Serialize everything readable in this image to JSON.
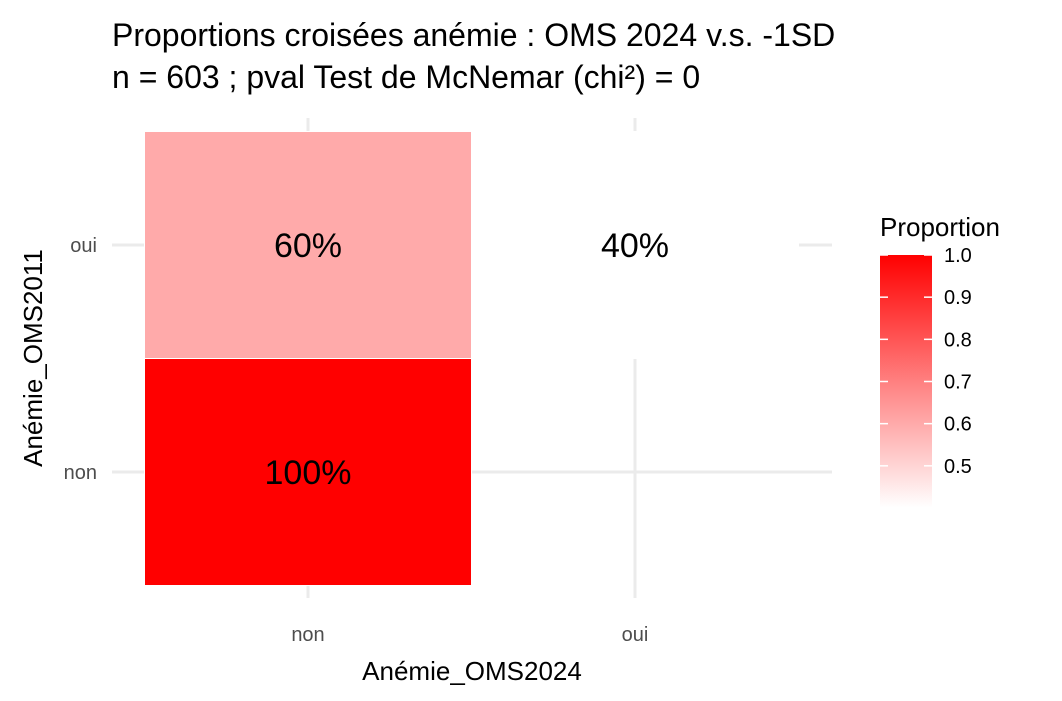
{
  "chart_data": {
    "type": "heatmap",
    "title": "Proportions croisées anémie : OMS 2024 v.s. -1SD",
    "subtitle": "n = 603 ; pval Test de McNemar (chi²) = 0",
    "xlabel": "Anémie_OMS2024",
    "ylabel": "Anémie_OMS2011",
    "x_categories": [
      "non",
      "oui"
    ],
    "y_categories": [
      "non",
      "oui"
    ],
    "cells": [
      {
        "x": "non",
        "y": "non",
        "value": 1.0,
        "label": "100%"
      },
      {
        "x": "non",
        "y": "oui",
        "value": 0.6,
        "label": "60%"
      },
      {
        "x": "oui",
        "y": "oui",
        "value": 0.4,
        "label": "40%"
      }
    ],
    "legend": {
      "title": "Proportion",
      "ticks": [
        "1.0",
        "0.9",
        "0.8",
        "0.7",
        "0.6",
        "0.5"
      ],
      "range": [
        0.4,
        1.0
      ],
      "low_color": "#ffffff",
      "high_color": "#ff0000",
      "placement": "right"
    },
    "grid": true
  }
}
